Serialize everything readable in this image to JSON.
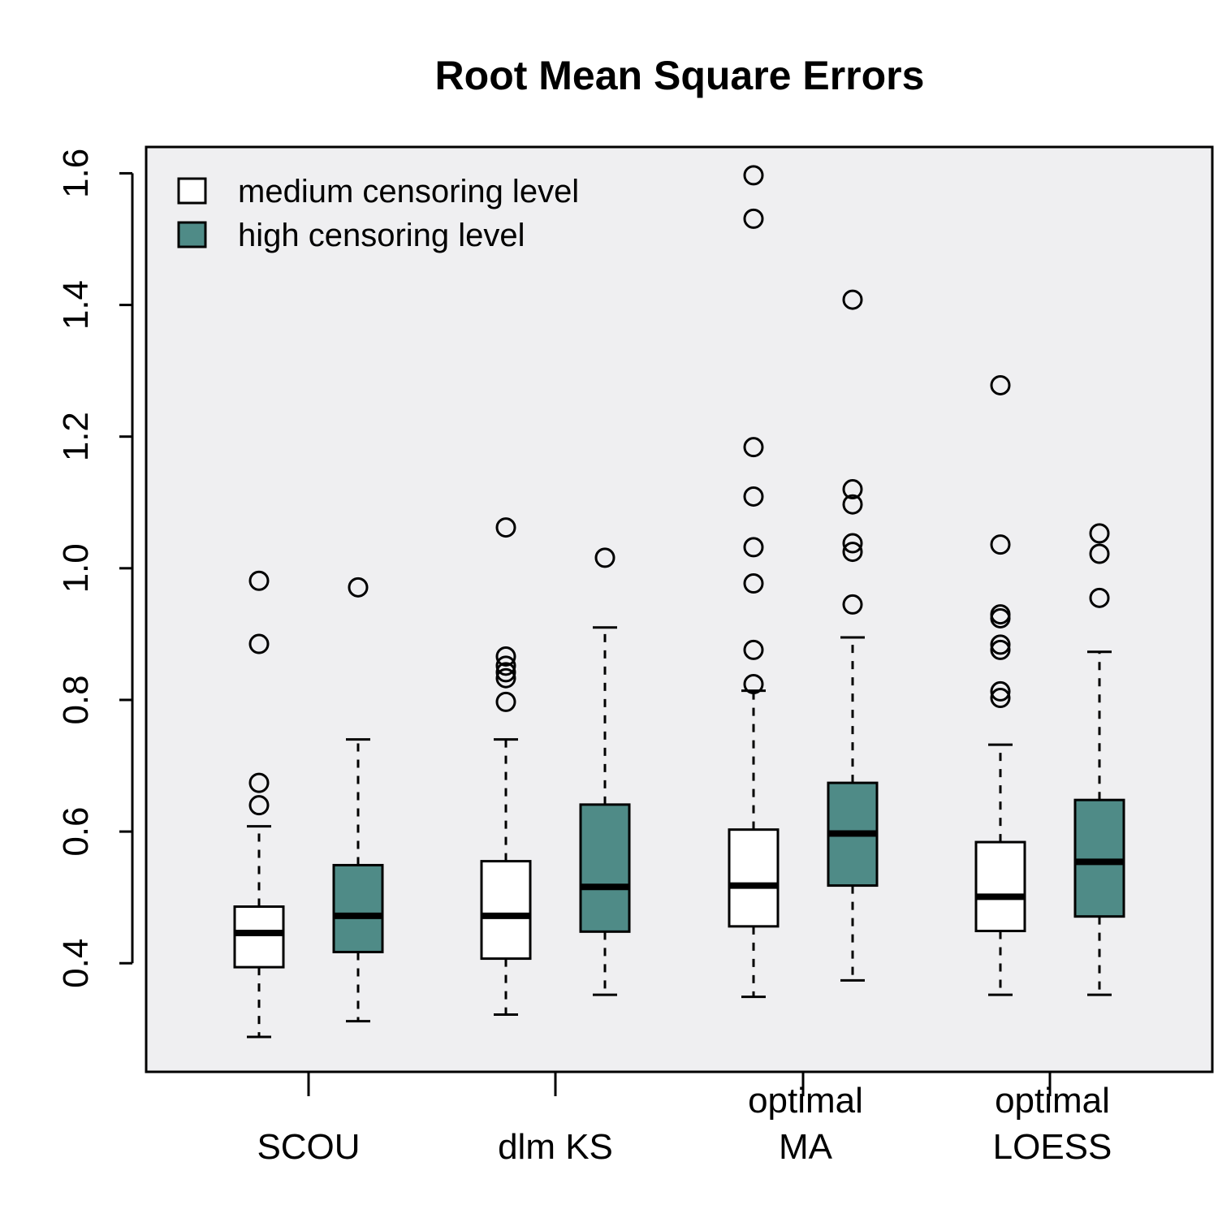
{
  "colors": {
    "medium": "#ffffff",
    "high": "#4f8b87",
    "panel": "#efeff1",
    "ink": "#000000"
  },
  "chart_data": {
    "type": "boxplot",
    "title": "Root Mean Square Errors",
    "xlabel": "",
    "ylabel": "",
    "ylim": [
      0.235,
      1.64
    ],
    "y_ticks": [
      0.4,
      0.6,
      0.8,
      1.0,
      1.2,
      1.4,
      1.6
    ],
    "y_tick_labels": [
      "0.4",
      "0.6",
      "0.8",
      "1.0",
      "1.2",
      "1.4",
      "1.6"
    ],
    "categories": [
      {
        "lines": [
          "SCOU"
        ]
      },
      {
        "lines": [
          "dlm KS"
        ]
      },
      {
        "lines": [
          "optimal",
          "MA"
        ]
      },
      {
        "lines": [
          "optimal",
          "LOESS"
        ]
      }
    ],
    "legend": {
      "position": "top-left",
      "items": [
        {
          "label": "medium censoring level",
          "series": "medium"
        },
        {
          "label": "high censoring level",
          "series": "high"
        }
      ]
    },
    "series": [
      {
        "key": "medium",
        "boxes": [
          {
            "whisker_low": 0.288,
            "q1": 0.394,
            "median": 0.446,
            "q3": 0.486,
            "whisker_high": 0.608,
            "outliers": [
              0.981,
              0.885,
              0.674,
              0.64
            ]
          },
          {
            "whisker_low": 0.322,
            "q1": 0.407,
            "median": 0.472,
            "q3": 0.555,
            "whisker_high": 0.74,
            "outliers": [
              1.062,
              0.866,
              0.852,
              0.842,
              0.833,
              0.797
            ]
          },
          {
            "whisker_low": 0.349,
            "q1": 0.456,
            "median": 0.518,
            "q3": 0.603,
            "whisker_high": 0.814,
            "outliers": [
              1.597,
              1.531,
              1.184,
              1.109,
              1.032,
              0.977,
              0.876,
              0.824
            ]
          },
          {
            "whisker_low": 0.352,
            "q1": 0.449,
            "median": 0.501,
            "q3": 0.584,
            "whisker_high": 0.732,
            "outliers": [
              1.278,
              1.036,
              0.93,
              0.924,
              0.884,
              0.876,
              0.813,
              0.803
            ]
          }
        ]
      },
      {
        "key": "high",
        "boxes": [
          {
            "whisker_low": 0.312,
            "q1": 0.417,
            "median": 0.472,
            "q3": 0.549,
            "whisker_high": 0.74,
            "outliers": [
              0.971
            ]
          },
          {
            "whisker_low": 0.352,
            "q1": 0.448,
            "median": 0.516,
            "q3": 0.641,
            "whisker_high": 0.91,
            "outliers": [
              1.016
            ]
          },
          {
            "whisker_low": 0.374,
            "q1": 0.518,
            "median": 0.597,
            "q3": 0.674,
            "whisker_high": 0.895,
            "outliers": [
              1.408,
              1.12,
              1.097,
              1.038,
              1.025,
              0.945
            ]
          },
          {
            "whisker_low": 0.352,
            "q1": 0.471,
            "median": 0.554,
            "q3": 0.648,
            "whisker_high": 0.873,
            "outliers": [
              1.053,
              1.022,
              0.955
            ]
          }
        ]
      }
    ]
  }
}
